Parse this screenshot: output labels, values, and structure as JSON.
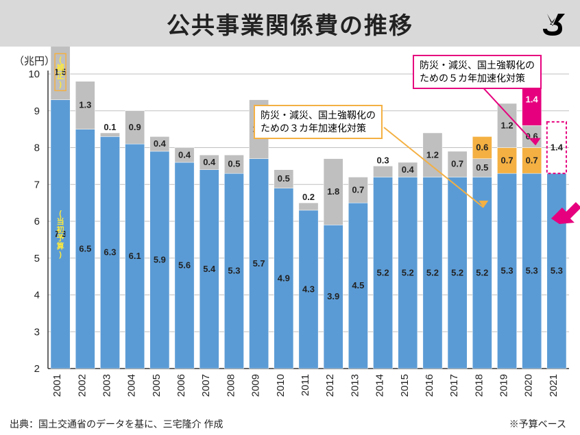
{
  "title": "公共事業関係費の推移",
  "y_unit": "（兆円）",
  "chart": {
    "type": "stacked-bar",
    "categories": [
      "2001",
      "2002",
      "2003",
      "2004",
      "2005",
      "2006",
      "2007",
      "2008",
      "2009",
      "2010",
      "2011",
      "2012",
      "2013",
      "2014",
      "2015",
      "2016",
      "2017",
      "2018",
      "2019",
      "2020",
      "2021"
    ],
    "ylim": [
      2,
      10
    ],
    "ytick_step": 1,
    "yticks": [
      "2",
      "3",
      "4",
      "5",
      "6",
      "7",
      "8",
      "9",
      "10"
    ],
    "background_color": "#ffffff",
    "grid_color": "#bfbfbf",
    "axis_color": "#333333",
    "label_fontsize": 13,
    "axis_fontsize": 15,
    "bars": [
      {
        "year": "2001",
        "segments": [
          {
            "v": 7.3,
            "c": "#5b9bd5",
            "l": "7.3"
          },
          {
            "v": 1.5,
            "c": "#bfbfbf",
            "l": "1.5"
          }
        ]
      },
      {
        "year": "2002",
        "segments": [
          {
            "v": 6.5,
            "c": "#5b9bd5",
            "l": "6.5"
          },
          {
            "v": 1.3,
            "c": "#bfbfbf",
            "l": "1.3"
          }
        ]
      },
      {
        "year": "2003",
        "segments": [
          {
            "v": 6.3,
            "c": "#5b9bd5",
            "l": "6.3"
          },
          {
            "v": 0.1,
            "c": "#bfbfbf",
            "l": "0.1",
            "lo": true
          }
        ]
      },
      {
        "year": "2004",
        "segments": [
          {
            "v": 6.1,
            "c": "#5b9bd5",
            "l": "6.1"
          },
          {
            "v": 0.9,
            "c": "#bfbfbf",
            "l": "0.9"
          }
        ]
      },
      {
        "year": "2005",
        "segments": [
          {
            "v": 5.9,
            "c": "#5b9bd5",
            "l": "5.9"
          },
          {
            "v": 0.4,
            "c": "#bfbfbf",
            "l": "0.4"
          }
        ]
      },
      {
        "year": "2006",
        "segments": [
          {
            "v": 5.6,
            "c": "#5b9bd5",
            "l": "5.6"
          },
          {
            "v": 0.4,
            "c": "#bfbfbf",
            "l": "0.4"
          }
        ]
      },
      {
        "year": "2007",
        "segments": [
          {
            "v": 5.4,
            "c": "#5b9bd5",
            "l": "5.4"
          },
          {
            "v": 0.4,
            "c": "#bfbfbf",
            "l": "0.4"
          }
        ]
      },
      {
        "year": "2008",
        "segments": [
          {
            "v": 5.3,
            "c": "#5b9bd5",
            "l": "5.3"
          },
          {
            "v": 0.5,
            "c": "#bfbfbf",
            "l": "0.5"
          }
        ]
      },
      {
        "year": "2009",
        "segments": [
          {
            "v": 5.7,
            "c": "#5b9bd5",
            "l": "5.7"
          },
          {
            "v": 1.6,
            "c": "#bfbfbf",
            "l": "1.6"
          }
        ]
      },
      {
        "year": "2010",
        "segments": [
          {
            "v": 4.9,
            "c": "#5b9bd5",
            "l": "4.9"
          },
          {
            "v": 0.5,
            "c": "#bfbfbf",
            "l": "0.5"
          }
        ]
      },
      {
        "year": "2011",
        "segments": [
          {
            "v": 4.3,
            "c": "#5b9bd5",
            "l": "4.3"
          },
          {
            "v": 0.2,
            "c": "#bfbfbf",
            "l": "0.2",
            "lo": true
          }
        ]
      },
      {
        "year": "2012",
        "segments": [
          {
            "v": 3.9,
            "c": "#5b9bd5",
            "l": "3.9"
          },
          {
            "v": 1.8,
            "c": "#bfbfbf",
            "l": "1.8"
          }
        ]
      },
      {
        "year": "2013",
        "segments": [
          {
            "v": 4.5,
            "c": "#5b9bd5",
            "l": "4.5"
          },
          {
            "v": 0.7,
            "c": "#bfbfbf",
            "l": "0.7"
          }
        ]
      },
      {
        "year": "2014",
        "segments": [
          {
            "v": 5.2,
            "c": "#5b9bd5",
            "l": "5.2"
          },
          {
            "v": 0.3,
            "c": "#bfbfbf",
            "l": "0.3",
            "lo": true
          }
        ]
      },
      {
        "year": "2015",
        "segments": [
          {
            "v": 5.2,
            "c": "#5b9bd5",
            "l": "5.2"
          },
          {
            "v": 0.4,
            "c": "#bfbfbf",
            "l": "0.4"
          }
        ]
      },
      {
        "year": "2016",
        "segments": [
          {
            "v": 5.2,
            "c": "#5b9bd5",
            "l": "5.2"
          },
          {
            "v": 1.2,
            "c": "#bfbfbf",
            "l": "1.2"
          }
        ]
      },
      {
        "year": "2017",
        "segments": [
          {
            "v": 5.2,
            "c": "#5b9bd5",
            "l": "5.2"
          },
          {
            "v": 0.7,
            "c": "#bfbfbf",
            "l": "0.7"
          }
        ]
      },
      {
        "year": "2018",
        "segments": [
          {
            "v": 5.2,
            "c": "#5b9bd5",
            "l": "5.2"
          },
          {
            "v": 0.5,
            "c": "#bfbfbf",
            "l": "0.5"
          },
          {
            "v": 0.6,
            "c": "#f4b042",
            "l": "0.6"
          }
        ]
      },
      {
        "year": "2019",
        "segments": [
          {
            "v": 5.3,
            "c": "#5b9bd5",
            "l": "5.3"
          },
          {
            "v": 0.7,
            "c": "#f4b042",
            "l": "0.7"
          },
          {
            "v": 1.2,
            "c": "#bfbfbf",
            "l": "1.2"
          }
        ]
      },
      {
        "year": "2020",
        "segments": [
          {
            "v": 5.3,
            "c": "#5b9bd5",
            "l": "5.3"
          },
          {
            "v": 0.7,
            "c": "#f4b042",
            "l": "0.7"
          },
          {
            "v": 0.6,
            "c": "#bfbfbf",
            "l": "0.6"
          },
          {
            "v": 1.4,
            "c": "#e6007e",
            "l": "1.4",
            "tw": true
          }
        ]
      },
      {
        "year": "2021",
        "segments": [
          {
            "v": 5.3,
            "c": "#5b9bd5",
            "l": "5.3"
          }
        ],
        "dashed": {
          "v": 1.4,
          "c": "#e6007e",
          "l": "1.4"
        }
      }
    ],
    "legend_annot": {
      "year": "2001",
      "items": [
        {
          "text": "(補正)",
          "color": "#ffeb3b",
          "stroke": "#f4b042",
          "seg": 1
        },
        {
          "text": "(当初予算)",
          "color": "#ffeb3b",
          "stroke": "#5b9bd5",
          "seg": 0
        }
      ]
    }
  },
  "callouts": {
    "orange": {
      "text1": "防災・減災、国土強靱化の",
      "text2": "ための３カ年加速化対策",
      "border": "#f4b042"
    },
    "pink": {
      "text1": "防災・減災、国土強靱化の",
      "text2": "ための５カ年加速化対策",
      "border": "#e6007e"
    }
  },
  "source": "出典：国土交通省のデータを基に、三宅隆介 作成",
  "note": "※予算ベース",
  "colors": {
    "blue": "#5b9bd5",
    "gray": "#bfbfbf",
    "orange": "#f4b042",
    "pink": "#e6007e",
    "title_bg": "#d9d9d9",
    "arrow_pink": "#e6007e",
    "arrow_orange": "#f4b042"
  }
}
